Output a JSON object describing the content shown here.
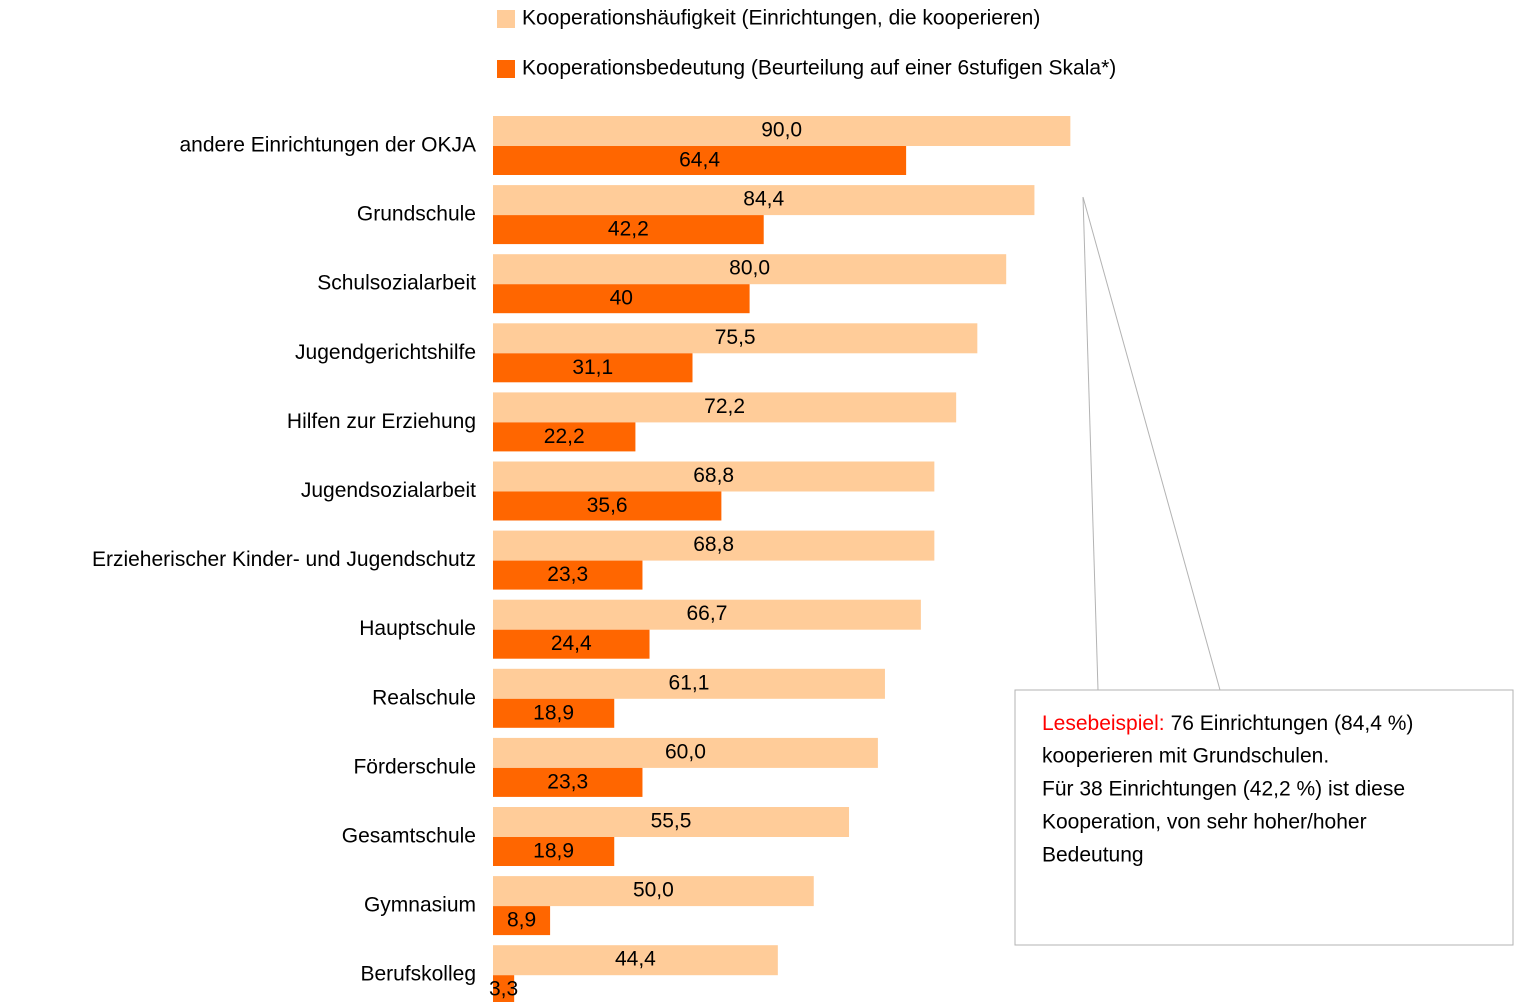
{
  "chart_data": {
    "type": "bar",
    "orientation": "horizontal",
    "categories": [
      "andere Einrichtungen der OKJA",
      "Grundschule",
      "Schulsozialarbeit",
      "Jugendgerichtshilfe",
      "Hilfen zur Erziehung",
      "Jugendsozialarbeit",
      "Erzieherischer Kinder- und Jugendschutz",
      "Hauptschule",
      "Realschule",
      "Förderschule",
      "Gesamtschule",
      "Gymnasium",
      "Berufskolleg"
    ],
    "series": [
      {
        "name": "Kooperationshäufigkeit (Einrichtungen, die kooperieren)",
        "color": "#ffcc99",
        "values": [
          90.0,
          84.4,
          80.0,
          75.5,
          72.2,
          68.8,
          68.8,
          66.7,
          61.1,
          60.0,
          55.5,
          50.0,
          44.4
        ],
        "value_labels": [
          "90,0",
          "84,4",
          "80,0",
          "75,5",
          "72,2",
          "68,8",
          "68,8",
          "66,7",
          "61,1",
          "60,0",
          "55,5",
          "50,0",
          "44,4"
        ]
      },
      {
        "name": "Kooperationsbedeutung (Beurteilung auf einer 6stufigen Skala*)",
        "color": "#ff6600",
        "values": [
          64.4,
          42.2,
          40,
          31.1,
          22.2,
          35.6,
          23.3,
          24.4,
          18.9,
          23.3,
          18.9,
          8.9,
          3.3
        ],
        "value_labels": [
          "64,4",
          "42,2",
          "40",
          "31,1",
          "22,2",
          "35,6",
          "23,3",
          "24,4",
          "18,9",
          "23,3",
          "18,9",
          "8,9",
          "3,3"
        ]
      }
    ],
    "annotation": {
      "label": "Lesebeispiel:",
      "label_color": "#ff0000",
      "lines": [
        "76 Einrichtungen (84,4 %)",
        "kooperieren mit Grundschulen.",
        "Für 38 Einrichtungen (42,2 %) ist diese",
        "Kooperation, von sehr hoher/hoher",
        "Bedeutung"
      ]
    }
  }
}
